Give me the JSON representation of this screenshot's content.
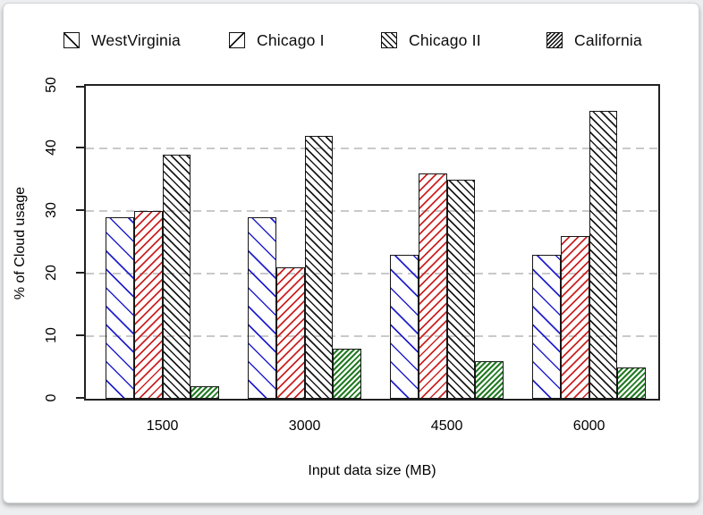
{
  "page": {
    "background_color": "#eceef0",
    "card_background": "#ffffff",
    "grid_color": "#c9c9c9",
    "frame_color": "#222222"
  },
  "chart_data": {
    "type": "bar",
    "title": "",
    "categories": [
      "1500",
      "3000",
      "4500",
      "6000"
    ],
    "series": [
      {
        "name": "WestVirginia",
        "hatch_color": "#2222cc",
        "hatch_direction": "/",
        "hatch_density": "sparse",
        "values": [
          29,
          29,
          23,
          23
        ]
      },
      {
        "name": "Chicago I",
        "hatch_color": "#cc2222",
        "hatch_direction": "\\",
        "hatch_density": "medium",
        "values": [
          30,
          21,
          36,
          26
        ]
      },
      {
        "name": "Chicago II",
        "hatch_color": "#1a1a1a",
        "hatch_direction": "/",
        "hatch_density": "dense",
        "values": [
          39,
          42,
          35,
          46
        ]
      },
      {
        "name": "California",
        "hatch_color": "#227a22",
        "hatch_direction": "\\",
        "hatch_density": "very-dense",
        "values": [
          2,
          8,
          6,
          5
        ]
      }
    ],
    "xlabel": "Input data size (MB)",
    "ylabel": "% of Cloud usage",
    "ylim": [
      0,
      50
    ],
    "yticks": [
      0,
      10,
      20,
      30,
      40,
      50
    ],
    "grid": "horizontal dashed gridlines at 10, 20, 30, 40",
    "legend_position": "top",
    "legend_swatch_line_color": "#111111"
  }
}
